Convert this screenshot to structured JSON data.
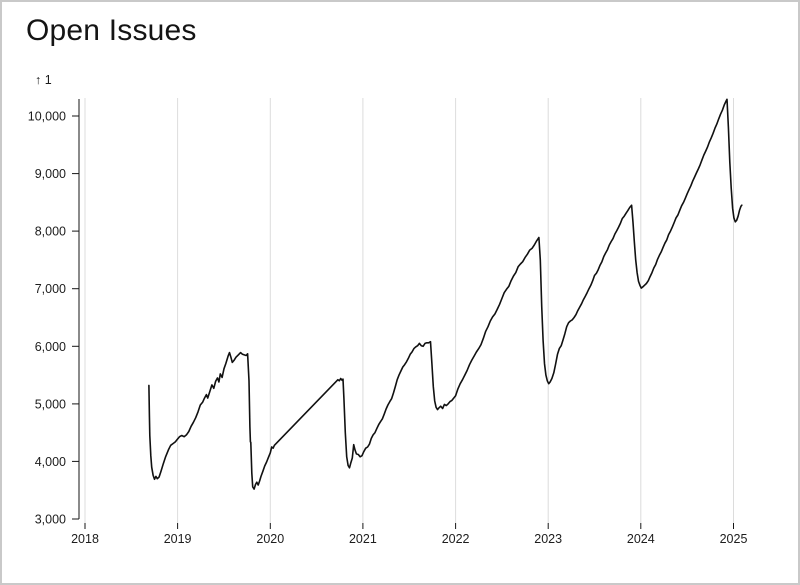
{
  "window": {
    "background": "#ffffff",
    "border_color": "#c9c9c9"
  },
  "header": {
    "title": "Open Issues"
  },
  "chart_data": {
    "type": "line",
    "title": "Open Issues",
    "y_axis_label": "↑ 1",
    "xlabel": "",
    "ylabel": "",
    "x_ticks": [
      "2018",
      "2019",
      "2020",
      "2021",
      "2022",
      "2023",
      "2024",
      "2025"
    ],
    "y_ticks": [
      "3,000",
      "4,000",
      "5,000",
      "6,000",
      "7,000",
      "8,000",
      "9,000",
      "10,000"
    ],
    "x_domain": [
      2018,
      2025.2
    ],
    "y_domain": [
      3000,
      10000
    ],
    "grid": "vertical-only",
    "legend": "none",
    "line_color": "#111111",
    "grid_color": "#dcdcdc",
    "axis_color": "#161616",
    "series": [
      {
        "name": "Open Issues",
        "points": [
          [
            2018.69,
            5320
          ],
          [
            2018.695,
            4800
          ],
          [
            2018.7,
            4450
          ],
          [
            2018.71,
            4100
          ],
          [
            2018.72,
            3900
          ],
          [
            2018.735,
            3760
          ],
          [
            2018.75,
            3690
          ],
          [
            2018.765,
            3740
          ],
          [
            2018.78,
            3700
          ],
          [
            2018.8,
            3730
          ],
          [
            2018.82,
            3830
          ],
          [
            2018.845,
            3960
          ],
          [
            2018.87,
            4080
          ],
          [
            2018.9,
            4200
          ],
          [
            2018.925,
            4280
          ],
          [
            2018.95,
            4310
          ],
          [
            2018.975,
            4340
          ],
          [
            2019.0,
            4390
          ],
          [
            2019.02,
            4430
          ],
          [
            2019.045,
            4450
          ],
          [
            2019.07,
            4430
          ],
          [
            2019.095,
            4460
          ],
          [
            2019.12,
            4520
          ],
          [
            2019.145,
            4610
          ],
          [
            2019.17,
            4680
          ],
          [
            2019.195,
            4760
          ],
          [
            2019.22,
            4860
          ],
          [
            2019.245,
            4980
          ],
          [
            2019.27,
            5030
          ],
          [
            2019.29,
            5100
          ],
          [
            2019.31,
            5160
          ],
          [
            2019.325,
            5100
          ],
          [
            2019.35,
            5230
          ],
          [
            2019.37,
            5330
          ],
          [
            2019.39,
            5270
          ],
          [
            2019.41,
            5390
          ],
          [
            2019.43,
            5450
          ],
          [
            2019.445,
            5380
          ],
          [
            2019.46,
            5520
          ],
          [
            2019.48,
            5460
          ],
          [
            2019.5,
            5610
          ],
          [
            2019.52,
            5700
          ],
          [
            2019.545,
            5830
          ],
          [
            2019.56,
            5890
          ],
          [
            2019.575,
            5810
          ],
          [
            2019.59,
            5720
          ],
          [
            2019.61,
            5760
          ],
          [
            2019.63,
            5810
          ],
          [
            2019.655,
            5850
          ],
          [
            2019.68,
            5890
          ],
          [
            2019.7,
            5860
          ],
          [
            2019.72,
            5850
          ],
          [
            2019.74,
            5840
          ],
          [
            2019.755,
            5870
          ],
          [
            2019.77,
            5400
          ],
          [
            2019.78,
            4600
          ],
          [
            2019.785,
            4340
          ],
          [
            2019.79,
            4330
          ],
          [
            2019.8,
            3800
          ],
          [
            2019.81,
            3560
          ],
          [
            2019.825,
            3520
          ],
          [
            2019.84,
            3600
          ],
          [
            2019.855,
            3640
          ],
          [
            2019.87,
            3590
          ],
          [
            2019.885,
            3660
          ],
          [
            2019.9,
            3740
          ],
          [
            2019.92,
            3830
          ],
          [
            2019.94,
            3920
          ],
          [
            2019.96,
            3990
          ],
          [
            2019.98,
            4070
          ],
          [
            2020.0,
            4150
          ],
          [
            2020.015,
            4250
          ],
          [
            2020.03,
            4230
          ],
          [
            2020.045,
            4280
          ],
          [
            2020.73,
            5420
          ],
          [
            2020.745,
            5400
          ],
          [
            2020.76,
            5440
          ],
          [
            2020.775,
            5410
          ],
          [
            2020.785,
            5430
          ],
          [
            2020.795,
            5100
          ],
          [
            2020.81,
            4500
          ],
          [
            2020.825,
            4080
          ],
          [
            2020.84,
            3930
          ],
          [
            2020.855,
            3890
          ],
          [
            2020.87,
            3980
          ],
          [
            2020.885,
            4060
          ],
          [
            2020.9,
            4290
          ],
          [
            2020.915,
            4200
          ],
          [
            2020.93,
            4130
          ],
          [
            2020.95,
            4120
          ],
          [
            2020.97,
            4080
          ],
          [
            2020.99,
            4100
          ],
          [
            2021.01,
            4170
          ],
          [
            2021.03,
            4230
          ],
          [
            2021.05,
            4250
          ],
          [
            2021.07,
            4300
          ],
          [
            2021.09,
            4400
          ],
          [
            2021.11,
            4460
          ],
          [
            2021.13,
            4500
          ],
          [
            2021.15,
            4570
          ],
          [
            2021.17,
            4640
          ],
          [
            2021.19,
            4690
          ],
          [
            2021.21,
            4740
          ],
          [
            2021.23,
            4820
          ],
          [
            2021.25,
            4910
          ],
          [
            2021.27,
            4980
          ],
          [
            2021.29,
            5040
          ],
          [
            2021.31,
            5090
          ],
          [
            2021.33,
            5190
          ],
          [
            2021.35,
            5300
          ],
          [
            2021.37,
            5420
          ],
          [
            2021.39,
            5500
          ],
          [
            2021.41,
            5570
          ],
          [
            2021.43,
            5640
          ],
          [
            2021.45,
            5680
          ],
          [
            2021.47,
            5730
          ],
          [
            2021.49,
            5790
          ],
          [
            2021.51,
            5860
          ],
          [
            2021.53,
            5900
          ],
          [
            2021.55,
            5960
          ],
          [
            2021.57,
            5990
          ],
          [
            2021.59,
            6010
          ],
          [
            2021.61,
            6050
          ],
          [
            2021.63,
            6010
          ],
          [
            2021.65,
            6000
          ],
          [
            2021.67,
            6050
          ],
          [
            2021.69,
            6060
          ],
          [
            2021.71,
            6060
          ],
          [
            2021.73,
            6080
          ],
          [
            2021.745,
            5700
          ],
          [
            2021.76,
            5300
          ],
          [
            2021.775,
            5050
          ],
          [
            2021.79,
            4940
          ],
          [
            2021.805,
            4900
          ],
          [
            2021.82,
            4930
          ],
          [
            2021.84,
            4960
          ],
          [
            2021.86,
            4920
          ],
          [
            2021.88,
            4990
          ],
          [
            2021.9,
            4970
          ],
          [
            2021.92,
            5000
          ],
          [
            2021.94,
            5040
          ],
          [
            2021.96,
            5060
          ],
          [
            2021.98,
            5100
          ],
          [
            2022.0,
            5140
          ],
          [
            2022.025,
            5260
          ],
          [
            2022.05,
            5350
          ],
          [
            2022.075,
            5420
          ],
          [
            2022.1,
            5500
          ],
          [
            2022.125,
            5580
          ],
          [
            2022.15,
            5680
          ],
          [
            2022.175,
            5760
          ],
          [
            2022.2,
            5830
          ],
          [
            2022.225,
            5900
          ],
          [
            2022.25,
            5960
          ],
          [
            2022.275,
            6030
          ],
          [
            2022.3,
            6140
          ],
          [
            2022.325,
            6260
          ],
          [
            2022.35,
            6340
          ],
          [
            2022.375,
            6440
          ],
          [
            2022.4,
            6510
          ],
          [
            2022.425,
            6560
          ],
          [
            2022.45,
            6640
          ],
          [
            2022.475,
            6730
          ],
          [
            2022.5,
            6830
          ],
          [
            2022.525,
            6930
          ],
          [
            2022.55,
            6990
          ],
          [
            2022.575,
            7040
          ],
          [
            2022.6,
            7140
          ],
          [
            2022.625,
            7220
          ],
          [
            2022.65,
            7280
          ],
          [
            2022.675,
            7380
          ],
          [
            2022.7,
            7430
          ],
          [
            2022.725,
            7470
          ],
          [
            2022.75,
            7540
          ],
          [
            2022.775,
            7600
          ],
          [
            2022.8,
            7670
          ],
          [
            2022.825,
            7700
          ],
          [
            2022.85,
            7760
          ],
          [
            2022.875,
            7830
          ],
          [
            2022.9,
            7890
          ],
          [
            2022.915,
            7500
          ],
          [
            2022.93,
            6700
          ],
          [
            2022.945,
            6100
          ],
          [
            2022.96,
            5700
          ],
          [
            2022.975,
            5500
          ],
          [
            2022.99,
            5400
          ],
          [
            2023.005,
            5350
          ],
          [
            2023.02,
            5380
          ],
          [
            2023.04,
            5440
          ],
          [
            2023.06,
            5540
          ],
          [
            2023.08,
            5690
          ],
          [
            2023.1,
            5860
          ],
          [
            2023.12,
            5960
          ],
          [
            2023.14,
            6010
          ],
          [
            2023.16,
            6110
          ],
          [
            2023.18,
            6220
          ],
          [
            2023.2,
            6340
          ],
          [
            2023.22,
            6410
          ],
          [
            2023.24,
            6440
          ],
          [
            2023.26,
            6460
          ],
          [
            2023.28,
            6500
          ],
          [
            2023.3,
            6550
          ],
          [
            2023.32,
            6620
          ],
          [
            2023.34,
            6680
          ],
          [
            2023.36,
            6740
          ],
          [
            2023.38,
            6810
          ],
          [
            2023.4,
            6870
          ],
          [
            2023.42,
            6930
          ],
          [
            2023.44,
            7000
          ],
          [
            2023.46,
            7060
          ],
          [
            2023.48,
            7140
          ],
          [
            2023.5,
            7230
          ],
          [
            2023.52,
            7270
          ],
          [
            2023.54,
            7330
          ],
          [
            2023.56,
            7410
          ],
          [
            2023.58,
            7470
          ],
          [
            2023.6,
            7560
          ],
          [
            2023.62,
            7620
          ],
          [
            2023.64,
            7680
          ],
          [
            2023.66,
            7760
          ],
          [
            2023.68,
            7820
          ],
          [
            2023.7,
            7870
          ],
          [
            2023.72,
            7950
          ],
          [
            2023.74,
            8010
          ],
          [
            2023.76,
            8070
          ],
          [
            2023.78,
            8140
          ],
          [
            2023.8,
            8220
          ],
          [
            2023.82,
            8260
          ],
          [
            2023.84,
            8310
          ],
          [
            2023.86,
            8360
          ],
          [
            2023.88,
            8410
          ],
          [
            2023.9,
            8450
          ],
          [
            2023.915,
            8150
          ],
          [
            2023.93,
            7800
          ],
          [
            2023.945,
            7500
          ],
          [
            2023.96,
            7280
          ],
          [
            2023.975,
            7130
          ],
          [
            2023.99,
            7060
          ],
          [
            2024.005,
            7010
          ],
          [
            2024.02,
            7030
          ],
          [
            2024.04,
            7060
          ],
          [
            2024.06,
            7090
          ],
          [
            2024.08,
            7140
          ],
          [
            2024.1,
            7210
          ],
          [
            2024.12,
            7280
          ],
          [
            2024.14,
            7360
          ],
          [
            2024.16,
            7420
          ],
          [
            2024.18,
            7510
          ],
          [
            2024.2,
            7580
          ],
          [
            2024.22,
            7640
          ],
          [
            2024.24,
            7720
          ],
          [
            2024.26,
            7790
          ],
          [
            2024.28,
            7850
          ],
          [
            2024.3,
            7940
          ],
          [
            2024.32,
            8000
          ],
          [
            2024.34,
            8070
          ],
          [
            2024.36,
            8150
          ],
          [
            2024.38,
            8230
          ],
          [
            2024.4,
            8280
          ],
          [
            2024.42,
            8360
          ],
          [
            2024.44,
            8440
          ],
          [
            2024.46,
            8500
          ],
          [
            2024.48,
            8570
          ],
          [
            2024.5,
            8650
          ],
          [
            2024.52,
            8720
          ],
          [
            2024.54,
            8790
          ],
          [
            2024.56,
            8870
          ],
          [
            2024.58,
            8940
          ],
          [
            2024.6,
            9010
          ],
          [
            2024.62,
            9080
          ],
          [
            2024.64,
            9150
          ],
          [
            2024.66,
            9240
          ],
          [
            2024.68,
            9320
          ],
          [
            2024.7,
            9390
          ],
          [
            2024.72,
            9460
          ],
          [
            2024.74,
            9550
          ],
          [
            2024.76,
            9620
          ],
          [
            2024.78,
            9700
          ],
          [
            2024.8,
            9790
          ],
          [
            2024.82,
            9860
          ],
          [
            2024.84,
            9950
          ],
          [
            2024.86,
            10030
          ],
          [
            2024.88,
            10100
          ],
          [
            2024.9,
            10190
          ],
          [
            2024.92,
            10260
          ],
          [
            2024.93,
            10290
          ],
          [
            2024.945,
            9800
          ],
          [
            2024.96,
            9200
          ],
          [
            2024.975,
            8750
          ],
          [
            2024.99,
            8400
          ],
          [
            2025.005,
            8230
          ],
          [
            2025.02,
            8160
          ],
          [
            2025.035,
            8190
          ],
          [
            2025.05,
            8260
          ],
          [
            2025.065,
            8360
          ],
          [
            2025.08,
            8430
          ],
          [
            2025.09,
            8450
          ]
        ]
      }
    ]
  }
}
